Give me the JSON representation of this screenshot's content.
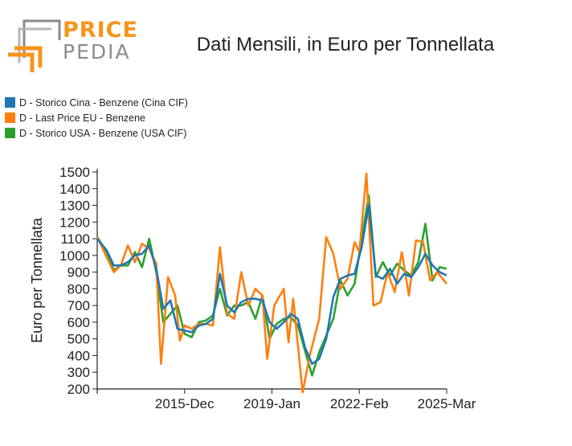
{
  "logo": {
    "line1": "PRICE",
    "line2": "PEDIA"
  },
  "chart_data": {
    "type": "line",
    "title": "Dati Mensili, in Euro per Tonnellata",
    "ylabel": "Euro per Tonnellata",
    "xlabel": "",
    "ylim": [
      200,
      1500
    ],
    "yticks": [
      200,
      300,
      400,
      500,
      600,
      700,
      800,
      900,
      1000,
      1100,
      1200,
      1300,
      1400,
      1500
    ],
    "x_start": "2012-11",
    "x_end": "2025-03",
    "xtick_labels": [
      {
        "label": "2015-Dec",
        "date": "2015-12"
      },
      {
        "label": "2019-Jan",
        "date": "2019-01"
      },
      {
        "label": "2022-Feb",
        "date": "2022-02"
      },
      {
        "label": "2025-Mar",
        "date": "2025-03"
      }
    ],
    "legend_position": "top-left",
    "series": [
      {
        "name": "D - Storico Cina - Benzene (Cina CIF)",
        "color": "#1f77b4",
        "points": [
          [
            "2012-11",
            1100
          ],
          [
            "2013-03",
            1030
          ],
          [
            "2013-06",
            940
          ],
          [
            "2013-09",
            940
          ],
          [
            "2013-12",
            960
          ],
          [
            "2014-03",
            1000
          ],
          [
            "2014-06",
            1010
          ],
          [
            "2014-09",
            1060
          ],
          [
            "2014-12",
            920
          ],
          [
            "2015-03",
            680
          ],
          [
            "2015-06",
            730
          ],
          [
            "2015-09",
            560
          ],
          [
            "2015-12",
            550
          ],
          [
            "2016-03",
            540
          ],
          [
            "2016-06",
            580
          ],
          [
            "2016-09",
            590
          ],
          [
            "2016-12",
            620
          ],
          [
            "2017-03",
            890
          ],
          [
            "2017-06",
            700
          ],
          [
            "2017-09",
            660
          ],
          [
            "2017-12",
            720
          ],
          [
            "2018-03",
            740
          ],
          [
            "2018-06",
            740
          ],
          [
            "2018-09",
            730
          ],
          [
            "2018-12",
            600
          ],
          [
            "2019-03",
            560
          ],
          [
            "2019-06",
            600
          ],
          [
            "2019-09",
            650
          ],
          [
            "2019-12",
            620
          ],
          [
            "2020-03",
            450
          ],
          [
            "2020-06",
            350
          ],
          [
            "2020-09",
            380
          ],
          [
            "2020-12",
            500
          ],
          [
            "2021-03",
            750
          ],
          [
            "2021-06",
            860
          ],
          [
            "2021-09",
            880
          ],
          [
            "2021-12",
            890
          ],
          [
            "2022-03",
            1050
          ],
          [
            "2022-06",
            1300
          ],
          [
            "2022-09",
            880
          ],
          [
            "2022-12",
            860
          ],
          [
            "2023-03",
            920
          ],
          [
            "2023-06",
            830
          ],
          [
            "2023-09",
            890
          ],
          [
            "2023-12",
            870
          ],
          [
            "2024-03",
            930
          ],
          [
            "2024-06",
            1010
          ],
          [
            "2024-09",
            940
          ],
          [
            "2024-12",
            900
          ],
          [
            "2025-03",
            880
          ]
        ]
      },
      {
        "name": "D - Last Price EU - Benzene",
        "color": "#ff7f0e",
        "points": [
          [
            "2012-11",
            1110
          ],
          [
            "2013-03",
            990
          ],
          [
            "2013-06",
            900
          ],
          [
            "2013-09",
            940
          ],
          [
            "2013-12",
            1060
          ],
          [
            "2014-03",
            960
          ],
          [
            "2014-06",
            1070
          ],
          [
            "2014-09",
            1040
          ],
          [
            "2014-12",
            950
          ],
          [
            "2015-02",
            350
          ],
          [
            "2015-05",
            870
          ],
          [
            "2015-08",
            760
          ],
          [
            "2015-10",
            490
          ],
          [
            "2015-12",
            580
          ],
          [
            "2016-03",
            560
          ],
          [
            "2016-06",
            590
          ],
          [
            "2016-09",
            590
          ],
          [
            "2016-12",
            580
          ],
          [
            "2017-03",
            1050
          ],
          [
            "2017-06",
            650
          ],
          [
            "2017-09",
            620
          ],
          [
            "2017-12",
            900
          ],
          [
            "2018-03",
            700
          ],
          [
            "2018-06",
            800
          ],
          [
            "2018-09",
            760
          ],
          [
            "2018-11",
            380
          ],
          [
            "2019-02",
            700
          ],
          [
            "2019-06",
            800
          ],
          [
            "2019-08",
            480
          ],
          [
            "2019-10",
            740
          ],
          [
            "2020-02",
            180
          ],
          [
            "2020-05",
            400
          ],
          [
            "2020-09",
            620
          ],
          [
            "2020-12",
            1110
          ],
          [
            "2021-03",
            1010
          ],
          [
            "2021-06",
            800
          ],
          [
            "2021-09",
            860
          ],
          [
            "2021-12",
            1080
          ],
          [
            "2022-02",
            1020
          ],
          [
            "2022-05",
            1490
          ],
          [
            "2022-08",
            700
          ],
          [
            "2022-11",
            720
          ],
          [
            "2023-02",
            900
          ],
          [
            "2023-05",
            780
          ],
          [
            "2023-08",
            1020
          ],
          [
            "2023-11",
            760
          ],
          [
            "2024-02",
            1090
          ],
          [
            "2024-05",
            1080
          ],
          [
            "2024-08",
            850
          ],
          [
            "2024-11",
            900
          ],
          [
            "2025-03",
            830
          ]
        ]
      },
      {
        "name": "D - Storico USA - Benzene (USA CIF)",
        "color": "#2ca02c",
        "points": [
          [
            "2012-11",
            1110
          ],
          [
            "2013-03",
            1020
          ],
          [
            "2013-06",
            910
          ],
          [
            "2013-09",
            940
          ],
          [
            "2013-12",
            940
          ],
          [
            "2014-03",
            1020
          ],
          [
            "2014-06",
            930
          ],
          [
            "2014-09",
            1100
          ],
          [
            "2014-12",
            900
          ],
          [
            "2015-03",
            600
          ],
          [
            "2015-06",
            650
          ],
          [
            "2015-09",
            700
          ],
          [
            "2015-12",
            530
          ],
          [
            "2016-03",
            510
          ],
          [
            "2016-06",
            600
          ],
          [
            "2016-09",
            610
          ],
          [
            "2016-12",
            640
          ],
          [
            "2017-03",
            800
          ],
          [
            "2017-06",
            640
          ],
          [
            "2017-09",
            700
          ],
          [
            "2017-12",
            700
          ],
          [
            "2018-03",
            720
          ],
          [
            "2018-06",
            620
          ],
          [
            "2018-09",
            760
          ],
          [
            "2018-12",
            500
          ],
          [
            "2019-03",
            590
          ],
          [
            "2019-06",
            620
          ],
          [
            "2019-09",
            630
          ],
          [
            "2019-12",
            580
          ],
          [
            "2020-03",
            430
          ],
          [
            "2020-06",
            280
          ],
          [
            "2020-09",
            420
          ],
          [
            "2020-12",
            520
          ],
          [
            "2021-03",
            620
          ],
          [
            "2021-06",
            850
          ],
          [
            "2021-09",
            760
          ],
          [
            "2021-12",
            830
          ],
          [
            "2022-03",
            1100
          ],
          [
            "2022-06",
            1360
          ],
          [
            "2022-09",
            870
          ],
          [
            "2022-12",
            960
          ],
          [
            "2023-03",
            880
          ],
          [
            "2023-06",
            950
          ],
          [
            "2023-09",
            910
          ],
          [
            "2023-12",
            880
          ],
          [
            "2024-03",
            960
          ],
          [
            "2024-06",
            1190
          ],
          [
            "2024-09",
            850
          ],
          [
            "2024-12",
            930
          ],
          [
            "2025-03",
            920
          ]
        ]
      }
    ]
  }
}
